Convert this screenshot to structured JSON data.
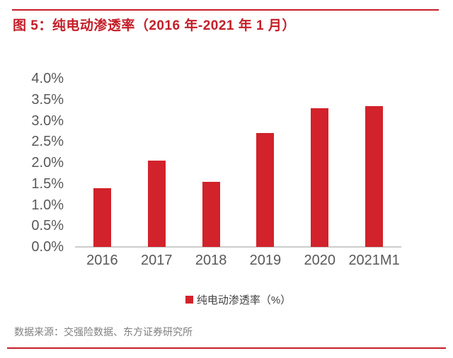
{
  "figure": {
    "title": "图 5：纯电动渗透率（2016 年-2021 年 1 月）",
    "source": "数据来源：交强险数据、东方证券研究所"
  },
  "colors": {
    "bar": "#d2222b",
    "title": "#c41e28",
    "rule": "#c41e28",
    "axis_label": "#595959",
    "axis_line": "#cccccc",
    "legend_text": "#3f3f3f",
    "source_text": "#7f7f7f"
  },
  "chart_data": {
    "type": "bar",
    "title": "纯电动渗透率（2016 年-2021 年 1 月）",
    "categories": [
      "2016",
      "2017",
      "2018",
      "2019",
      "2020",
      "2021M1"
    ],
    "values": [
      1.4,
      2.05,
      1.55,
      2.7,
      3.3,
      3.35
    ],
    "unit": "%",
    "ylim": [
      0,
      4
    ],
    "ytick_step": 0.5,
    "ytick_labels": [
      "0.0%",
      "0.5%",
      "1.0%",
      "1.5%",
      "2.0%",
      "2.5%",
      "3.0%",
      "3.5%",
      "4.0%"
    ],
    "legend": [
      "纯电动渗透率（%）"
    ],
    "legend_position": "bottom",
    "grid": false
  }
}
